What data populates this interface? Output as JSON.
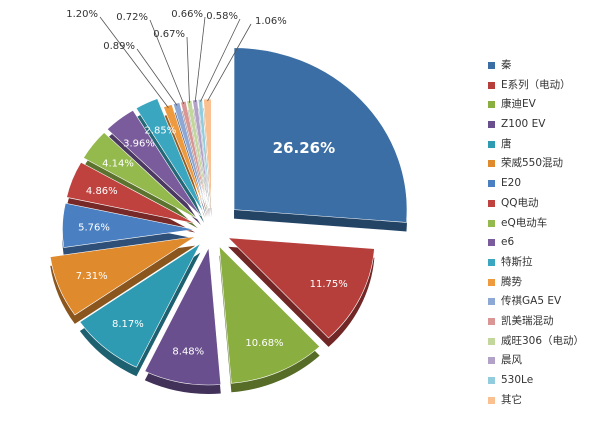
{
  "chart_data": {
    "type": "pie",
    "style": "3d-exploded",
    "title": "",
    "legend_position": "right",
    "slices": [
      {
        "label": "秦",
        "value": 26.26,
        "display": "26.26%",
        "color": "#3a6ea5"
      },
      {
        "label": "E系列（电动）",
        "value": 11.75,
        "display": "11.75%",
        "color": "#b73f3b"
      },
      {
        "label": "康迪EV",
        "value": 10.68,
        "display": "10.68%",
        "color": "#8aae3f"
      },
      {
        "label": "Z100 EV",
        "value": 8.48,
        "display": "8.48%",
        "color": "#6a4f8e"
      },
      {
        "label": "唐",
        "value": 8.17,
        "display": "8.17%",
        "color": "#2f9bb3"
      },
      {
        "label": "荣威550混动",
        "value": 7.31,
        "display": "7.31%",
        "color": "#e08a2e"
      },
      {
        "label": "E20",
        "value": 5.76,
        "display": "5.76%",
        "color": "#4a7fc1"
      },
      {
        "label": "QQ电动",
        "value": 4.86,
        "display": "4.86%",
        "color": "#c0423f"
      },
      {
        "label": "eQ电动车",
        "value": 4.14,
        "display": "4.14%",
        "color": "#94b94c"
      },
      {
        "label": "e6",
        "value": 3.96,
        "display": "3.96%",
        "color": "#7a5c9c"
      },
      {
        "label": "特斯拉",
        "value": 2.85,
        "display": "2.85%",
        "color": "#3aa6c0"
      },
      {
        "label": "腾势",
        "value": 1.2,
        "display": "1.20%",
        "color": "#ee9a3f"
      },
      {
        "label": "传祺GA5 EV",
        "value": 0.89,
        "display": "0.89%",
        "color": "#8da8d4"
      },
      {
        "label": "凯美瑞混动",
        "value": 0.72,
        "display": "0.72%",
        "color": "#d99694"
      },
      {
        "label": "威旺306（电动）",
        "value": 0.67,
        "display": "0.67%",
        "color": "#c3d69b"
      },
      {
        "label": "晨风",
        "value": 0.66,
        "display": "0.66%",
        "color": "#b3a2c7"
      },
      {
        "label": "530Le",
        "value": 0.58,
        "display": "0.58%",
        "color": "#93cddd"
      },
      {
        "label": "其它",
        "value": 1.06,
        "display": "1.06%",
        "color": "#fac090"
      }
    ]
  }
}
